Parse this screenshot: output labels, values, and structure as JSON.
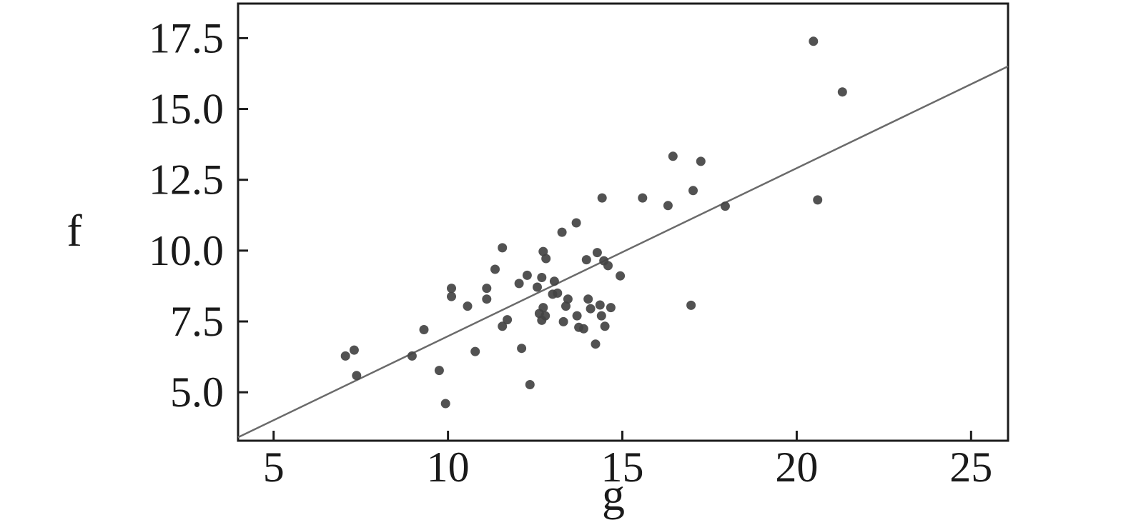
{
  "chart_data": {
    "type": "scatter",
    "title": "",
    "xlabel": "g",
    "ylabel": "f",
    "xlim": [
      3.98,
      26.06
    ],
    "ylim": [
      3.29,
      18.72
    ],
    "x_ticks": [
      5,
      10,
      15,
      20,
      25
    ],
    "x_tick_labels": [
      "5",
      "10",
      "15",
      "20",
      "25"
    ],
    "y_ticks": [
      5.0,
      7.5,
      10.0,
      12.5,
      15.0,
      17.5
    ],
    "y_tick_labels": [
      "5.0",
      "7.5",
      "10.0",
      "12.5",
      "15.0",
      "17.5"
    ],
    "grid": false,
    "legend": null,
    "colors": {
      "point": "#434343",
      "regression_line": "#6a6a6a",
      "axis": "#1c1c1c",
      "background": "#ffffff"
    },
    "regression_line": {
      "slope": 0.593,
      "intercept": 1.05
    },
    "points": [
      [
        7.06,
        6.28
      ],
      [
        7.31,
        6.49
      ],
      [
        7.38,
        5.59
      ],
      [
        8.97,
        6.28
      ],
      [
        9.31,
        7.21
      ],
      [
        9.75,
        5.77
      ],
      [
        9.93,
        4.6
      ],
      [
        10.1,
        8.67
      ],
      [
        10.1,
        8.38
      ],
      [
        10.56,
        8.04
      ],
      [
        10.78,
        6.44
      ],
      [
        11.11,
        8.67
      ],
      [
        11.11,
        8.29
      ],
      [
        11.35,
        9.34
      ],
      [
        11.56,
        10.1
      ],
      [
        11.56,
        7.33
      ],
      [
        11.7,
        7.56
      ],
      [
        12.04,
        8.84
      ],
      [
        12.11,
        6.55
      ],
      [
        12.27,
        9.13
      ],
      [
        12.35,
        5.27
      ],
      [
        12.56,
        8.71
      ],
      [
        12.69,
        9.05
      ],
      [
        12.73,
        9.97
      ],
      [
        12.81,
        9.72
      ],
      [
        12.73,
        7.99
      ],
      [
        12.62,
        7.78
      ],
      [
        12.79,
        7.7
      ],
      [
        12.69,
        7.54
      ],
      [
        13.0,
        8.46
      ],
      [
        13.14,
        8.5
      ],
      [
        13.05,
        8.92
      ],
      [
        13.27,
        10.65
      ],
      [
        13.68,
        10.98
      ],
      [
        13.44,
        8.29
      ],
      [
        13.38,
        8.04
      ],
      [
        13.31,
        7.49
      ],
      [
        13.7,
        7.7
      ],
      [
        13.75,
        7.29
      ],
      [
        13.89,
        7.24
      ],
      [
        13.97,
        9.68
      ],
      [
        14.02,
        8.29
      ],
      [
        14.09,
        7.95
      ],
      [
        14.23,
        6.7
      ],
      [
        14.28,
        9.93
      ],
      [
        14.36,
        8.08
      ],
      [
        14.4,
        7.7
      ],
      [
        14.42,
        11.86
      ],
      [
        14.47,
        9.64
      ],
      [
        14.5,
        7.33
      ],
      [
        14.59,
        9.47
      ],
      [
        14.67,
        7.99
      ],
      [
        14.94,
        9.11
      ],
      [
        15.58,
        11.86
      ],
      [
        16.31,
        11.59
      ],
      [
        16.45,
        13.33
      ],
      [
        16.97,
        8.07
      ],
      [
        17.03,
        12.12
      ],
      [
        17.25,
        13.15
      ],
      [
        17.95,
        11.57
      ],
      [
        20.48,
        17.39
      ],
      [
        20.6,
        11.79
      ],
      [
        21.31,
        15.6
      ]
    ]
  }
}
